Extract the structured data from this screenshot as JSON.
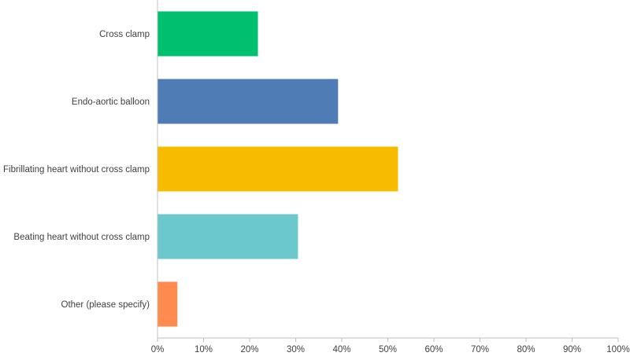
{
  "chart_data": {
    "type": "bar",
    "orientation": "horizontal",
    "categories": [
      "Cross clamp",
      "Endo-aortic balloon",
      "Fibrillating heart without cross clamp",
      "Beating heart without cross clamp",
      "Other (please specify)"
    ],
    "values": [
      21.8,
      39.2,
      52.2,
      30.5,
      4.3
    ],
    "unit": "%",
    "xlim": [
      0,
      100
    ],
    "x_ticks": [
      0,
      10,
      20,
      30,
      40,
      50,
      60,
      70,
      80,
      90,
      100
    ],
    "x_tick_labels": [
      "0%",
      "10%",
      "20%",
      "30%",
      "40%",
      "50%",
      "60%",
      "70%",
      "80%",
      "90%",
      "100%"
    ],
    "bar_colors": [
      "#00bf6f",
      "#507cb6",
      "#f7bc00",
      "#6bc8cd",
      "#ff8b4f"
    ],
    "grid": false,
    "legend": "none",
    "title": "",
    "xlabel": "",
    "ylabel": ""
  }
}
